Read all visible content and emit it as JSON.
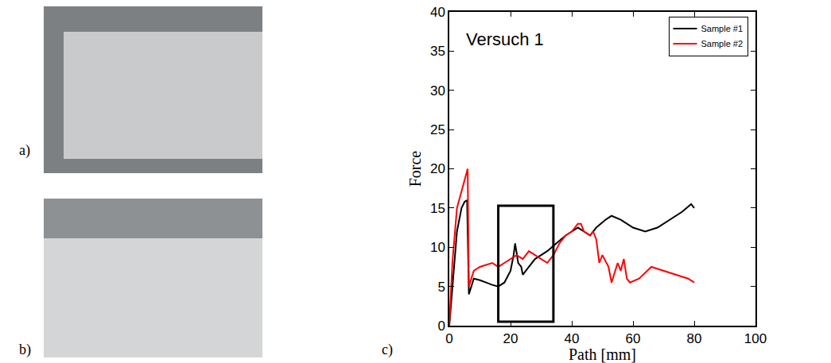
{
  "panel_labels": [
    "a)",
    "b)",
    "c)"
  ],
  "chart_data": {
    "type": "line",
    "annotations": [
      {
        "text": "Versuch 1",
        "x": 5,
        "y": 36.5
      }
    ],
    "x_label": "Path [mm]",
    "y_label": "Force",
    "xlim": [
      0,
      100
    ],
    "xticks": [
      0,
      20,
      40,
      60,
      80,
      100
    ],
    "ylim": [
      0,
      40
    ],
    "yticks": [
      0,
      5,
      10,
      15,
      20,
      25,
      30,
      35,
      40
    ],
    "legend": "upper right",
    "box": {
      "x": [
        16,
        34
      ],
      "y": [
        0.5,
        15.3
      ]
    },
    "series": [
      {
        "name": "Sample #1",
        "color": "#000000",
        "x": [
          0,
          1,
          2.5,
          4,
          5,
          5.8,
          6.1,
          6.4,
          8,
          10,
          12,
          14,
          16,
          18,
          20,
          21,
          21.5,
          22.5,
          23.5,
          24,
          26,
          28,
          30,
          32,
          35,
          38,
          40,
          42,
          44,
          46,
          48,
          51,
          53,
          56,
          60,
          64,
          68,
          72,
          76,
          79,
          80
        ],
        "values": [
          0,
          5,
          12,
          15,
          15.8,
          16,
          10,
          4,
          6,
          5.8,
          5.5,
          5.2,
          5,
          5.5,
          7,
          9,
          10.5,
          8,
          7.5,
          6.5,
          7.5,
          8.5,
          9,
          9.5,
          10.5,
          11.5,
          12,
          12.5,
          12,
          11.5,
          12.5,
          13.5,
          14,
          13.5,
          12.5,
          12,
          12.5,
          13.5,
          14.5,
          15.5,
          15
        ]
      },
      {
        "name": "Sample #2",
        "color": "#ff0000",
        "x": [
          0,
          1,
          2.5,
          4.5,
          6,
          6.2,
          6.4,
          8,
          10,
          14,
          16,
          18,
          22,
          24,
          26,
          30,
          32,
          34,
          36,
          38,
          40,
          42,
          43,
          44,
          46,
          47,
          48,
          49,
          50,
          52,
          53,
          55,
          56,
          57,
          58,
          59,
          62,
          66,
          70,
          74,
          78,
          80
        ],
        "values": [
          0,
          8,
          15,
          18,
          20,
          12,
          5,
          7,
          7.5,
          8,
          7.5,
          8,
          9,
          8.5,
          9.5,
          8.5,
          8,
          9,
          10.5,
          11.5,
          12,
          13,
          13,
          12,
          11.5,
          12,
          11,
          8,
          9,
          7.5,
          5.5,
          8,
          7,
          8.5,
          6,
          5.5,
          6,
          7.5,
          7,
          6.5,
          6,
          5.5
        ]
      }
    ]
  }
}
